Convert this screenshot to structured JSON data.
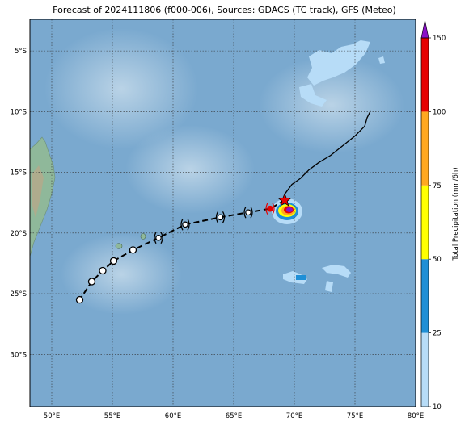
{
  "title": "Forecast of 2024111806 (f000-006), Sources: GDACS (TC track), GFS (Meteo)",
  "map": {
    "lon_range": [
      48.2,
      80
    ],
    "lat_range": [
      -34.3,
      -2.4
    ],
    "lon_ticks": [
      {
        "value": 50,
        "label": "50°E"
      },
      {
        "value": 55,
        "label": "55°E"
      },
      {
        "value": 60,
        "label": "60°E"
      },
      {
        "value": 65,
        "label": "65°E"
      },
      {
        "value": 70,
        "label": "70°E"
      },
      {
        "value": 75,
        "label": "75°E"
      },
      {
        "value": 80,
        "label": "80°E"
      }
    ],
    "lat_ticks": [
      {
        "value": -5,
        "label": "5°S"
      },
      {
        "value": -10,
        "label": "10°S"
      },
      {
        "value": -15,
        "label": "15°S"
      },
      {
        "value": -20,
        "label": "20°S"
      },
      {
        "value": -25,
        "label": "25°S"
      },
      {
        "value": -30,
        "label": "30°S"
      }
    ],
    "gridlines": true,
    "ocean_color": "#7aa9cf",
    "land_color": "#8fb89a"
  },
  "observed_track": [
    [
      76.3,
      -9.9
    ],
    [
      76.0,
      -10.5
    ],
    [
      75.8,
      -11.2
    ],
    [
      75.0,
      -12.0
    ],
    [
      74.0,
      -12.8
    ],
    [
      73.0,
      -13.6
    ],
    [
      72.0,
      -14.2
    ],
    [
      71.2,
      -14.8
    ],
    [
      70.5,
      -15.5
    ],
    [
      69.8,
      -16.0
    ],
    [
      69.2,
      -16.8
    ]
  ],
  "forecast_track": [
    [
      69.2,
      -17.3
    ],
    [
      68.0,
      -18.0
    ],
    [
      66.2,
      -18.3
    ],
    [
      63.9,
      -18.7
    ],
    [
      61.0,
      -19.3
    ],
    [
      58.8,
      -20.4
    ],
    [
      56.7,
      -21.4
    ],
    [
      55.1,
      -22.3
    ],
    [
      54.2,
      -23.1
    ],
    [
      53.3,
      -24.0
    ],
    [
      52.3,
      -25.5
    ]
  ],
  "current_position": {
    "lon": 69.2,
    "lat": -17.3,
    "marker": "star"
  },
  "storm_markers": [
    {
      "lon": 68.0,
      "lat": -18.0,
      "type": "cyclone"
    },
    {
      "lon": 66.2,
      "lat": -18.3,
      "type": "cyclone"
    },
    {
      "lon": 63.9,
      "lat": -18.7,
      "type": "cyclone"
    },
    {
      "lon": 61.0,
      "lat": -19.3,
      "type": "cyclone"
    },
    {
      "lon": 58.8,
      "lat": -20.4,
      "type": "cyclone"
    },
    {
      "lon": 56.7,
      "lat": -21.4,
      "type": "low"
    },
    {
      "lon": 55.1,
      "lat": -22.3,
      "type": "low"
    },
    {
      "lon": 54.2,
      "lat": -23.1,
      "type": "low"
    },
    {
      "lon": 53.3,
      "lat": -24.0,
      "type": "low"
    },
    {
      "lon": 52.3,
      "lat": -25.5,
      "type": "low"
    }
  ],
  "colorbar": {
    "label": "Total Precipitation (mm/6h)",
    "ticks": [
      "10",
      "25",
      "50",
      "75",
      "100",
      "150"
    ],
    "bands": [
      {
        "from": 10,
        "to": 25,
        "color": "#b7dcf7"
      },
      {
        "from": 25,
        "to": 50,
        "color": "#1f8fd6"
      },
      {
        "from": 50,
        "to": 75,
        "color": "#ffff00"
      },
      {
        "from": 75,
        "to": 100,
        "color": "#ffa820"
      },
      {
        "from": 100,
        "to": 150,
        "color": "#e60000"
      }
    ],
    "extend_color": "#8a10c8"
  }
}
